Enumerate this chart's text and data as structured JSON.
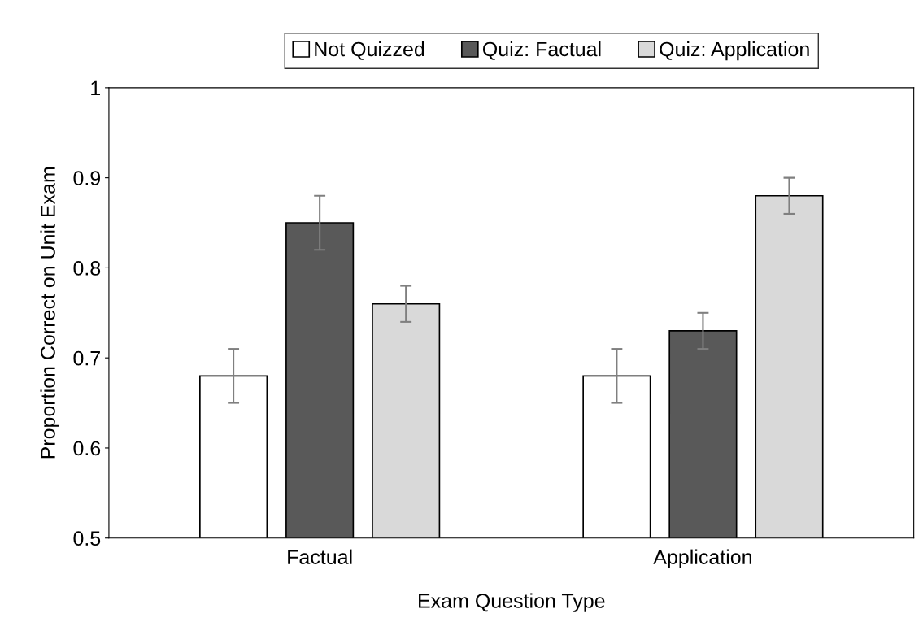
{
  "chart_data": {
    "type": "bar",
    "xlabel": "Exam Question Type",
    "ylabel": "Proportion Correct on Unit Exam",
    "categories": [
      "Factual",
      "Application"
    ],
    "series": [
      {
        "name": "Not Quizzed",
        "color": "#ffffff",
        "values": [
          0.68,
          0.68
        ],
        "errors": [
          0.03,
          0.03
        ]
      },
      {
        "name": "Quiz: Factual",
        "color": "#595959",
        "values": [
          0.85,
          0.73
        ],
        "errors": [
          0.03,
          0.02
        ]
      },
      {
        "name": "Quiz: Application",
        "color": "#d9d9d9",
        "values": [
          0.76,
          0.88
        ],
        "errors": [
          0.02,
          0.02
        ]
      }
    ],
    "ylim": [
      0.5,
      1
    ],
    "yticks": [
      0.5,
      0.6,
      0.7,
      0.8,
      0.9,
      1
    ],
    "grid": false,
    "legend": "top"
  }
}
